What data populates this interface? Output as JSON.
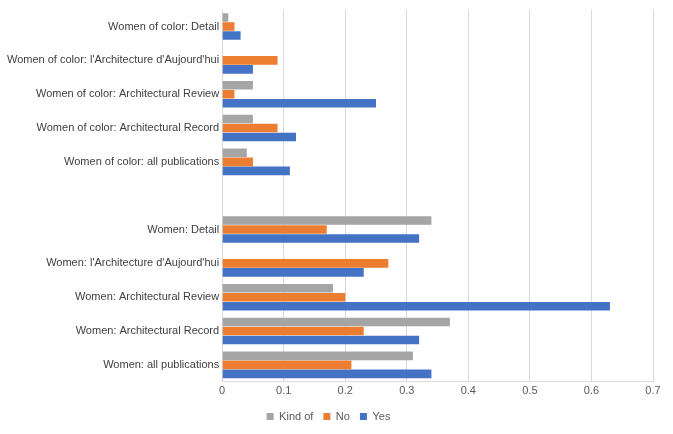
{
  "chart_data": {
    "type": "bar",
    "orientation": "horizontal",
    "legend": "bottom",
    "grid": true,
    "categories": [
      "Women of color: Detail",
      "Women of color: l'Architecture d'Aujourd'hui",
      "Women of color: Architectural Review",
      "Women of color: Architectural Record",
      "Women of color: all publications",
      null,
      "Women: Detail",
      "Women: l'Architecture d'Aujourd'hui",
      "Women: Architectural Review",
      "Women: Architectural Record",
      "Women: all publications"
    ],
    "series": [
      {
        "name": "Kind of",
        "color": "#a5a5a5",
        "values": [
          0.01,
          0,
          0.05,
          0.05,
          0.04,
          null,
          0.34,
          0,
          0.18,
          0.37,
          0.31
        ]
      },
      {
        "name": "No",
        "color": "#ed7d31",
        "values": [
          0.02,
          0.09,
          0.02,
          0.09,
          0.05,
          null,
          0.17,
          0.27,
          0.2,
          0.23,
          0.21
        ]
      },
      {
        "name": "Yes",
        "color": "#4472c4",
        "values": [
          0.03,
          0.05,
          0.25,
          0.12,
          0.11,
          null,
          0.32,
          0.23,
          0.63,
          0.32,
          0.34
        ]
      }
    ],
    "xlim": [
      0,
      0.7
    ],
    "xticks": [
      0,
      0.1,
      0.2,
      0.3,
      0.4,
      0.5,
      0.6,
      0.7
    ]
  }
}
